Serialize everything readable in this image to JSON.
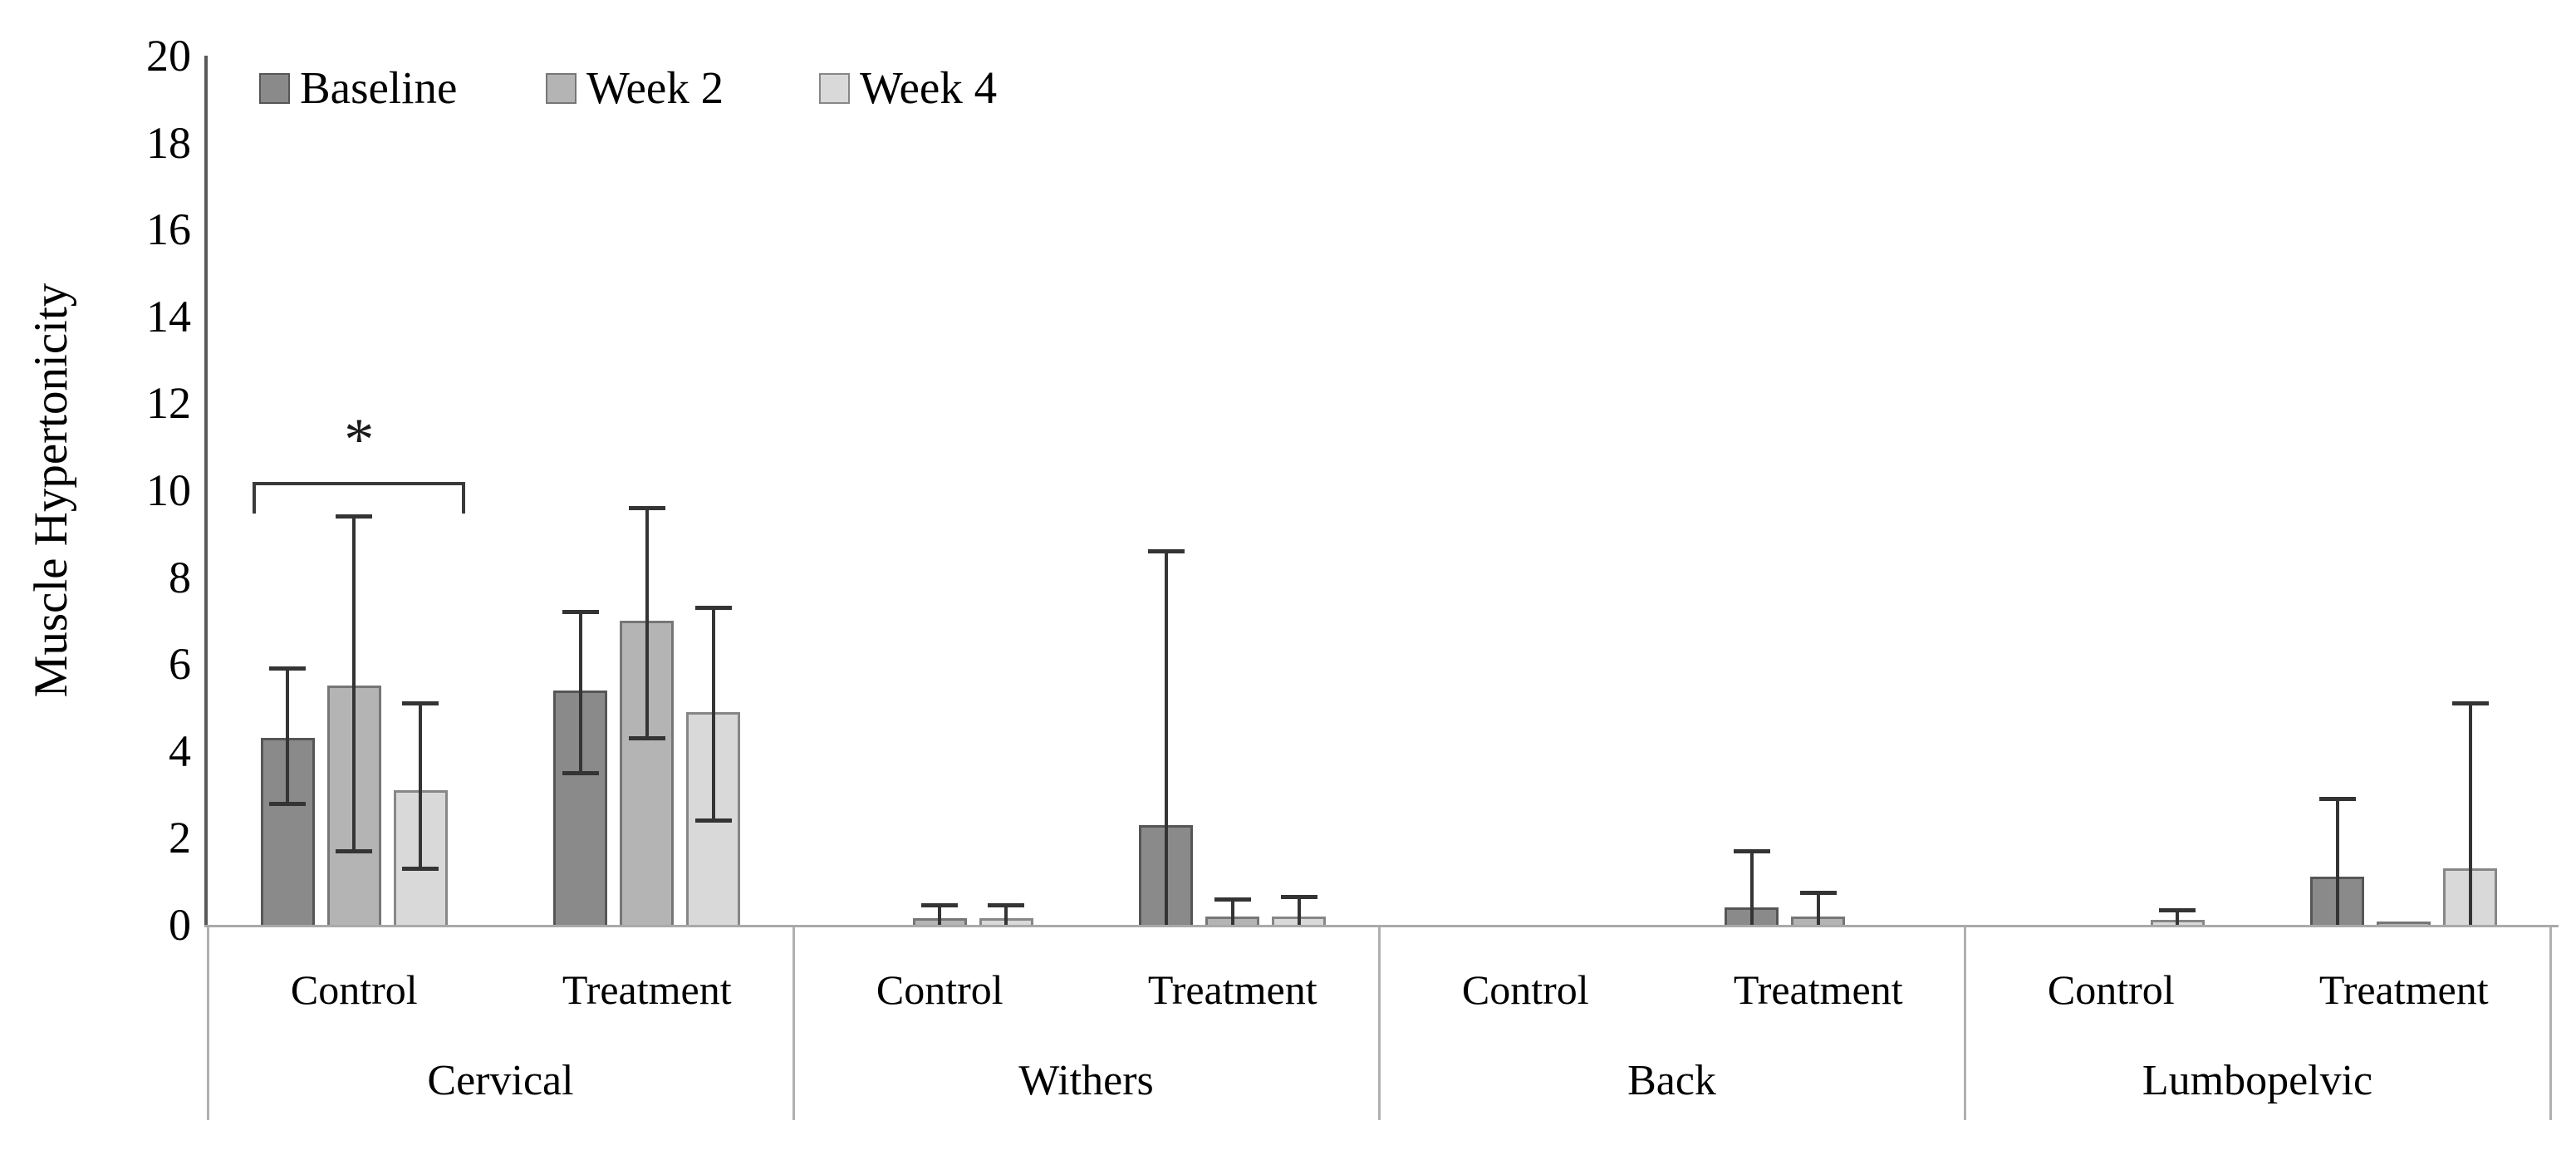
{
  "chart_data": {
    "type": "bar",
    "title": "",
    "ylabel": "Muscle Hypertonicity",
    "xlabel": "",
    "ylim": [
      0,
      20
    ],
    "yticks": [
      0,
      2,
      4,
      6,
      8,
      10,
      12,
      14,
      16,
      18,
      20
    ],
    "grid": false,
    "legend_position": "top-left",
    "series": [
      {
        "name": "Baseline",
        "fill": "#8a8a8a",
        "border": "#565656"
      },
      {
        "name": "Week 2",
        "fill": "#b4b4b4",
        "border": "#767676"
      },
      {
        "name": "Week 4",
        "fill": "#d9d9d9",
        "border": "#878787"
      }
    ],
    "colors": {
      "y_axis_line": "#595959",
      "x_axis_line": "#a9a9a9",
      "group_divider": "#b0b0b0",
      "error_bar": "#343434",
      "annotation": "#3a3a3a"
    },
    "groups": [
      {
        "label": "Cervical",
        "subgroups": [
          {
            "label": "Control",
            "bars": [
              {
                "series": "Baseline",
                "value": 4.3,
                "err_low": 2.8,
                "err_high": 5.9
              },
              {
                "series": "Week 2",
                "value": 5.5,
                "err_low": 1.7,
                "err_high": 9.4
              },
              {
                "series": "Week 4",
                "value": 3.1,
                "err_low": 1.3,
                "err_high": 5.1
              }
            ]
          },
          {
            "label": "Treatment",
            "bars": [
              {
                "series": "Baseline",
                "value": 5.4,
                "err_low": 3.5,
                "err_high": 7.2
              },
              {
                "series": "Week 2",
                "value": 7.0,
                "err_low": 4.3,
                "err_high": 9.6
              },
              {
                "series": "Week 4",
                "value": 4.9,
                "err_low": 2.4,
                "err_high": 7.3
              }
            ]
          }
        ]
      },
      {
        "label": "Withers",
        "subgroups": [
          {
            "label": "Control",
            "bars": [
              {
                "series": "Baseline",
                "value": 0
              },
              {
                "series": "Week 2",
                "value": 0.15,
                "err_low": 0,
                "err_high": 0.45
              },
              {
                "series": "Week 4",
                "value": 0.15,
                "err_low": 0,
                "err_high": 0.45
              }
            ]
          },
          {
            "label": "Treatment",
            "bars": [
              {
                "series": "Baseline",
                "value": 2.3,
                "err_low": 0,
                "err_high": 8.6
              },
              {
                "series": "Week 2",
                "value": 0.2,
                "err_low": 0,
                "err_high": 0.6
              },
              {
                "series": "Week 4",
                "value": 0.2,
                "err_low": 0,
                "err_high": 0.65
              }
            ]
          }
        ]
      },
      {
        "label": "Back",
        "subgroups": [
          {
            "label": "Control",
            "bars": [
              {
                "series": "Baseline",
                "value": 0
              },
              {
                "series": "Week 2",
                "value": 0
              },
              {
                "series": "Week 4",
                "value": 0
              }
            ]
          },
          {
            "label": "Treatment",
            "bars": [
              {
                "series": "Baseline",
                "value": 0.4,
                "err_low": 0,
                "err_high": 1.7
              },
              {
                "series": "Week 2",
                "value": 0.2,
                "err_low": 0,
                "err_high": 0.75
              },
              {
                "series": "Week 4",
                "value": 0
              }
            ]
          }
        ]
      },
      {
        "label": "Lumbopelvic",
        "subgroups": [
          {
            "label": "Control",
            "bars": [
              {
                "series": "Baseline",
                "value": 0
              },
              {
                "series": "Week 2",
                "value": 0
              },
              {
                "series": "Week 4",
                "value": 0.12,
                "err_low": 0,
                "err_high": 0.35
              }
            ]
          },
          {
            "label": "Treatment",
            "bars": [
              {
                "series": "Baseline",
                "value": 1.1,
                "err_low": 0,
                "err_high": 2.9
              },
              {
                "series": "Week 2",
                "value": 0.07
              },
              {
                "series": "Week 4",
                "value": 1.3,
                "err_low": 0,
                "err_high": 5.1
              }
            ]
          }
        ]
      }
    ],
    "annotation": {
      "symbol": "*",
      "bracket": {
        "group_index": 0,
        "subgroup_index": 0,
        "from_series": 0,
        "to_series": 2,
        "y": 10.2
      }
    }
  }
}
